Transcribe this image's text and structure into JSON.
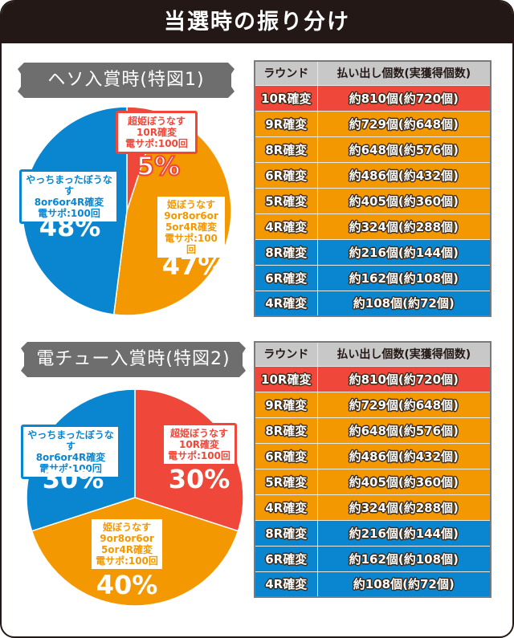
{
  "header": {
    "title": "当選時の振り分け"
  },
  "colors": {
    "red": "#ef473a",
    "orange": "#f39800",
    "blue": "#0a85cf",
    "header_bg": "#231815",
    "label_bg": "#6e6e6e"
  },
  "sections": [
    {
      "label": "ヘソ入賞時(特図1)",
      "slices": [
        {
          "name": "超姫ぼうなす",
          "line1": "超姫ぼうなす",
          "line2": "10R確変",
          "line3": "電サポ:100回",
          "line4": "",
          "percent": "5%",
          "value": 5,
          "color": "#ef473a"
        },
        {
          "name": "姫ぼうなす",
          "line1": "姫ぼうなす",
          "line2": "9or8or6or",
          "line3": "5or4R確変",
          "line4": "電サポ:100回",
          "percent": "47%",
          "value": 47,
          "color": "#f39800"
        },
        {
          "name": "やっちまったぼうなす",
          "line1": "やっちまったぼうなす",
          "line2": "8or6or4R確変",
          "line3": "電サポ:100回",
          "line4": "",
          "percent": "48%",
          "value": 48,
          "color": "#0a85cf"
        }
      ],
      "table": {
        "headers": [
          "ラウンド",
          "払い出し個数(実獲得個数)"
        ],
        "rows": [
          {
            "round": "10R確変",
            "amount": "約810個(約720個)",
            "color": "red"
          },
          {
            "round": "9R確変",
            "amount": "約729個(約648個)",
            "color": "orange"
          },
          {
            "round": "8R確変",
            "amount": "約648個(約576個)",
            "color": "orange"
          },
          {
            "round": "6R確変",
            "amount": "約486個(約432個)",
            "color": "orange"
          },
          {
            "round": "5R確変",
            "amount": "約405個(約360個)",
            "color": "orange"
          },
          {
            "round": "4R確変",
            "amount": "約324個(約288個)",
            "color": "orange"
          },
          {
            "round": "8R確変",
            "amount": "約216個(約144個)",
            "color": "blue"
          },
          {
            "round": "6R確変",
            "amount": "約162個(約108個)",
            "color": "blue"
          },
          {
            "round": "4R確変",
            "amount": "約108個(約72個)",
            "color": "blue"
          }
        ]
      }
    },
    {
      "label": "電チュー入賞時(特図2)",
      "slices": [
        {
          "name": "超姫ぼうなす",
          "line1": "超姫ぼうなす",
          "line2": "10R確変",
          "line3": "電サポ:100回",
          "line4": "",
          "percent": "30%",
          "value": 30,
          "color": "#ef473a"
        },
        {
          "name": "姫ぼうなす",
          "line1": "姫ぼうなす",
          "line2": "9or8or6or",
          "line3": "5or4R確変",
          "line4": "電サポ:100回",
          "percent": "40%",
          "value": 40,
          "color": "#f39800"
        },
        {
          "name": "やっちまったぼうなす",
          "line1": "やっちまったぼうなす",
          "line2": "8or6or4R確変",
          "line3": "電サポ:100回",
          "line4": "",
          "percent": "30%",
          "value": 30,
          "color": "#0a85cf"
        }
      ],
      "table": {
        "headers": [
          "ラウンド",
          "払い出し個数(実獲得個数)"
        ],
        "rows": [
          {
            "round": "10R確変",
            "amount": "約810個(約720個)",
            "color": "red"
          },
          {
            "round": "9R確変",
            "amount": "約729個(約648個)",
            "color": "orange"
          },
          {
            "round": "8R確変",
            "amount": "約648個(約576個)",
            "color": "orange"
          },
          {
            "round": "6R確変",
            "amount": "約486個(約432個)",
            "color": "orange"
          },
          {
            "round": "5R確変",
            "amount": "約405個(約360個)",
            "color": "orange"
          },
          {
            "round": "4R確変",
            "amount": "約324個(約288個)",
            "color": "orange"
          },
          {
            "round": "8R確変",
            "amount": "約216個(約144個)",
            "color": "blue"
          },
          {
            "round": "6R確変",
            "amount": "約162個(約108個)",
            "color": "blue"
          },
          {
            "round": "4R確変",
            "amount": "約108個(約72個)",
            "color": "blue"
          }
        ]
      }
    }
  ],
  "chart_data": [
    {
      "type": "pie",
      "title": "ヘソ入賞時(特図1)",
      "categories": [
        "超姫ぼうなす (10R確変 電サポ:100回)",
        "姫ぼうなす (9or8or6or5or4R確変 電サポ:100回)",
        "やっちまったぼうなす (8or6or4R確変 電サポ:100回)"
      ],
      "values": [
        5,
        47,
        48
      ],
      "colors": [
        "#ef473a",
        "#f39800",
        "#0a85cf"
      ]
    },
    {
      "type": "pie",
      "title": "電チュー入賞時(特図2)",
      "categories": [
        "超姫ぼうなす (10R確変 電サポ:100回)",
        "姫ぼうなす (9or8or6or5or4R確変 電サポ:100回)",
        "やっちまったぼうなす (8or6or4R確変 電サポ:100回)"
      ],
      "values": [
        30,
        40,
        30
      ],
      "colors": [
        "#ef473a",
        "#f39800",
        "#0a85cf"
      ]
    },
    {
      "type": "table",
      "title": "払い出し個数(実獲得個数)",
      "columns": [
        "ラウンド",
        "払い出し個数",
        "実獲得個数"
      ],
      "rows": [
        [
          "10R確変",
          810,
          720
        ],
        [
          "9R確変",
          729,
          648
        ],
        [
          "8R確変",
          648,
          576
        ],
        [
          "6R確変",
          486,
          432
        ],
        [
          "5R確変",
          405,
          360
        ],
        [
          "4R確変",
          324,
          288
        ],
        [
          "8R確変",
          216,
          144
        ],
        [
          "6R確変",
          162,
          108
        ],
        [
          "4R確変",
          108,
          72
        ]
      ]
    }
  ]
}
